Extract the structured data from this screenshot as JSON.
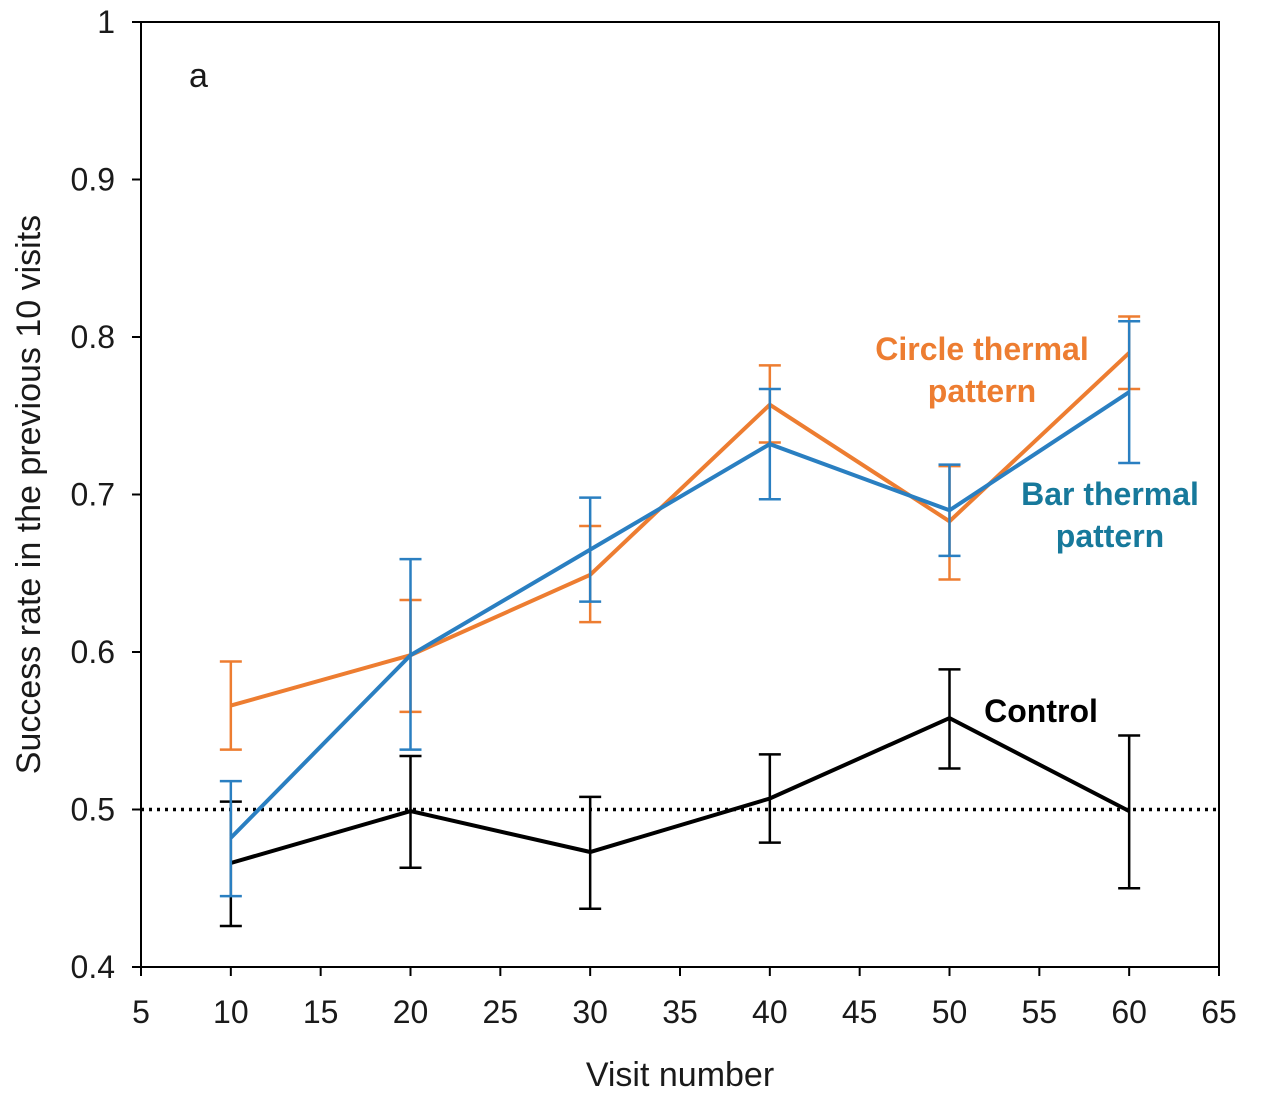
{
  "chart_data": {
    "type": "line",
    "panel_label": "a",
    "xlabel": "Visit number",
    "ylabel": "Success rate in the previous 10 visits",
    "xlim": [
      5,
      65
    ],
    "ylim": [
      0.4,
      1
    ],
    "xticks": [
      5,
      10,
      15,
      20,
      25,
      30,
      35,
      40,
      45,
      50,
      55,
      60,
      65
    ],
    "yticks": [
      0.4,
      0.5,
      0.6,
      0.7,
      0.8,
      0.9,
      1
    ],
    "ytick_labels": [
      "0.4",
      "0.5",
      "0.6",
      "0.7",
      "0.8",
      "0.9",
      "1"
    ],
    "grid": false,
    "reference_line": {
      "y": 0.5,
      "style": "dotted"
    },
    "x": [
      10,
      20,
      30,
      40,
      50,
      60
    ],
    "series": [
      {
        "label_lines": [
          "Circle thermal",
          "pattern"
        ],
        "color": "#ed7d31",
        "values": [
          0.566,
          0.598,
          0.649,
          0.757,
          0.683,
          0.79
        ],
        "err_low": [
          0.538,
          0.562,
          0.619,
          0.733,
          0.646,
          0.767
        ],
        "err_high": [
          0.594,
          0.633,
          0.68,
          0.782,
          0.718,
          0.813
        ]
      },
      {
        "label_lines": [
          "Bar thermal",
          "pattern"
        ],
        "color": "#2a7fc1",
        "label_color": "#17799b",
        "values": [
          0.482,
          0.598,
          0.665,
          0.732,
          0.69,
          0.765
        ],
        "err_low": [
          0.445,
          0.538,
          0.632,
          0.697,
          0.661,
          0.72
        ],
        "err_high": [
          0.518,
          0.659,
          0.698,
          0.767,
          0.719,
          0.81
        ]
      },
      {
        "label_lines": [
          "Control"
        ],
        "color": "#000000",
        "values": [
          0.466,
          0.499,
          0.473,
          0.507,
          0.558,
          0.499
        ],
        "err_low": [
          0.426,
          0.463,
          0.437,
          0.479,
          0.526,
          0.45
        ],
        "err_high": [
          0.505,
          0.534,
          0.508,
          0.535,
          0.589,
          0.547
        ]
      }
    ]
  }
}
